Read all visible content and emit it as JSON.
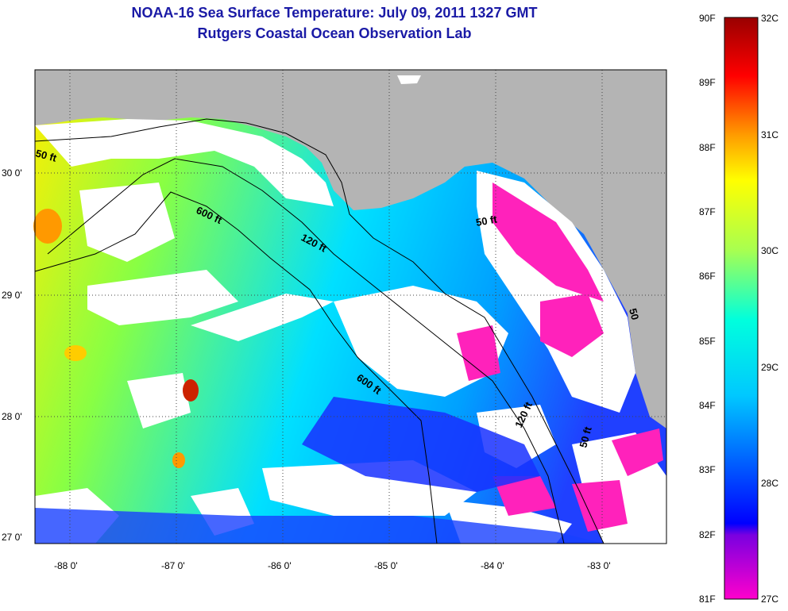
{
  "header": {
    "title": "NOAA-16 Sea Surface Temperature:  July 09, 2011 1327 GMT",
    "subtitle": "Rutgers Coastal Ocean Observation Lab"
  },
  "map": {
    "lat_labels": [
      "30 0'",
      "29 0'",
      "28 0'",
      "27 0'"
    ],
    "lon_labels": [
      "-88 0'",
      "-87 0'",
      "-86 0'",
      "-85 0'",
      "-84 0'",
      "-83 0'"
    ],
    "isobath_labels": [
      "50 ft",
      "600 ft",
      "120 ft",
      "50 ft",
      "600 ft",
      "120 ft",
      "50 ft",
      "50"
    ],
    "colors": {
      "land": "#b4b4b4",
      "cloud": "#ffffff",
      "frame": "#000000"
    }
  },
  "colorbar": {
    "fahrenheit": [
      "90F",
      "89F",
      "88F",
      "87F",
      "86F",
      "85F",
      "84F",
      "83F",
      "82F",
      "81F"
    ],
    "celsius": [
      "32C",
      "31C",
      "30C",
      "29C",
      "28C",
      "27C"
    ],
    "gradient": [
      "#ff00cc",
      "#7a00e0",
      "#0000ff",
      "#00c8ff",
      "#00ffdd",
      "#a8ff50",
      "#ffff00",
      "#ff9900",
      "#ff0000",
      "#990000"
    ]
  }
}
